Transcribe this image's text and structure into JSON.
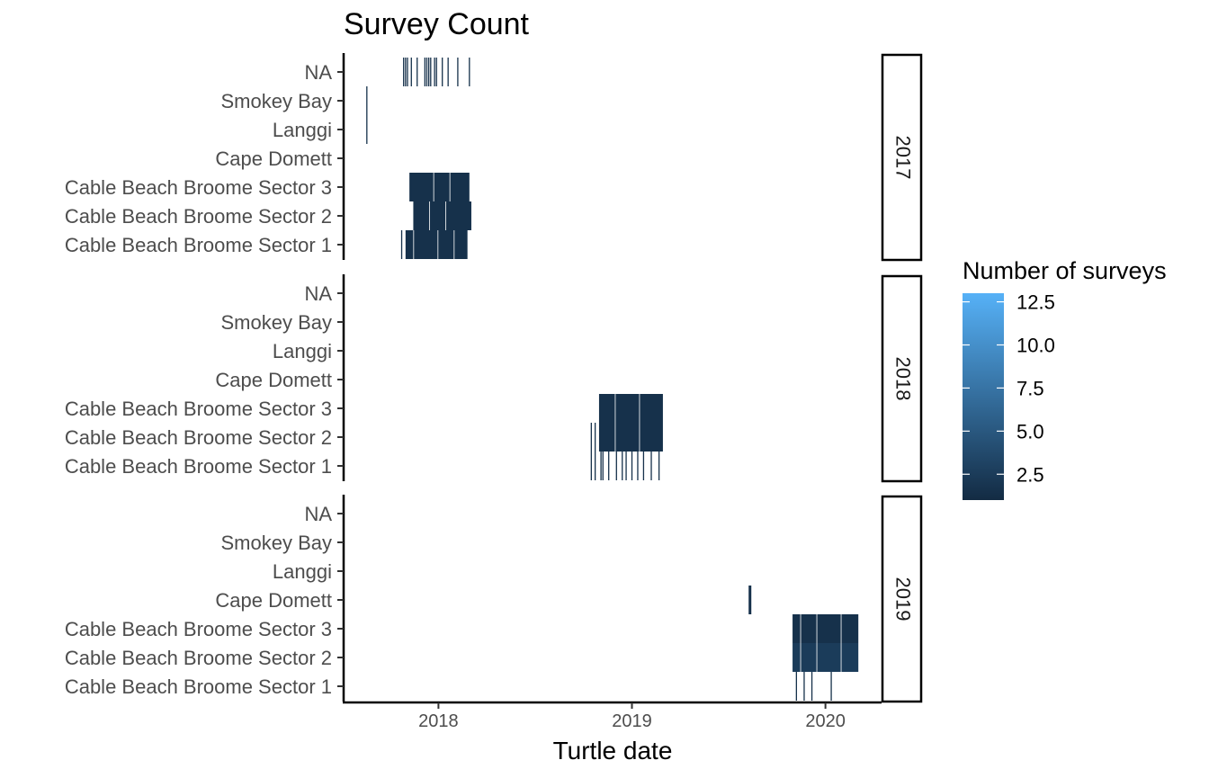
{
  "chart_data": {
    "type": "heatmap",
    "title": "Survey Count",
    "xlabel": "Turtle date",
    "ylabel": "",
    "x_ticks": [
      "2018",
      "2019",
      "2020"
    ],
    "x_tick_years": [
      2018,
      2019,
      2020
    ],
    "xlim": [
      2017.51,
      2020.29
    ],
    "y_categories": [
      "NA",
      "Smokey Bay",
      "Langgi",
      "Cape Domett",
      "Cable Beach Broome Sector 3",
      "Cable Beach Broome Sector 2",
      "Cable Beach Broome Sector 1"
    ],
    "legend": {
      "title": "Number of surveys",
      "ticks": [
        2.5,
        5.0,
        7.5,
        10.0,
        12.5
      ],
      "tick_labels": [
        "2.5",
        "5.0",
        "7.5",
        "10.0",
        "12.5"
      ],
      "range": [
        1,
        13
      ],
      "colors": {
        "low": "#132B43",
        "high": "#56B1F7"
      },
      "position": "right"
    },
    "facets": [
      {
        "label": "2017",
        "bands": [
          {
            "site": "Cable Beach Broome Sector 3",
            "from": 2017.85,
            "to": 2018.16,
            "value": 1.5
          },
          {
            "site": "Cable Beach Broome Sector 2",
            "from": 2017.87,
            "to": 2018.17,
            "value": 1.5
          },
          {
            "site": "Cable Beach Broome Sector 1",
            "from": 2017.83,
            "to": 2018.15,
            "value": 1.5
          }
        ],
        "lines": [
          {
            "site": "NA",
            "x": 2017.82,
            "value": 1.5
          },
          {
            "site": "NA",
            "x": 2017.83,
            "value": 1.5
          },
          {
            "site": "NA",
            "x": 2017.84,
            "value": 1.5
          },
          {
            "site": "NA",
            "x": 2017.86,
            "value": 1.5
          },
          {
            "site": "NA",
            "x": 2017.89,
            "value": 1.5
          },
          {
            "site": "NA",
            "x": 2017.93,
            "value": 1.5
          },
          {
            "site": "NA",
            "x": 2017.94,
            "value": 1.5
          },
          {
            "site": "NA",
            "x": 2017.95,
            "value": 1.5
          },
          {
            "site": "NA",
            "x": 2017.96,
            "value": 1.5
          },
          {
            "site": "NA",
            "x": 2017.98,
            "value": 1.5
          },
          {
            "site": "NA",
            "x": 2017.99,
            "value": 1.5
          },
          {
            "site": "NA",
            "x": 2018.02,
            "value": 1.5
          },
          {
            "site": "NA",
            "x": 2018.05,
            "value": 1.5
          },
          {
            "site": "NA",
            "x": 2018.1,
            "value": 1.5
          },
          {
            "site": "NA",
            "x": 2018.16,
            "value": 1.5
          },
          {
            "site": "Smokey Bay",
            "x": 2017.63,
            "value": 1.5
          },
          {
            "site": "Langgi",
            "x": 2017.63,
            "value": 1.5
          },
          {
            "site": "Cable Beach Broome Sector 1",
            "x": 2017.81,
            "value": 1.5
          }
        ]
      },
      {
        "label": "2018",
        "bands": [
          {
            "site": "Cable Beach Broome Sector 3",
            "from": 2018.83,
            "to": 2019.16,
            "value": 1.5
          },
          {
            "site": "Cable Beach Broome Sector 2",
            "from": 2018.83,
            "to": 2019.16,
            "value": 1.5
          }
        ],
        "lines": [
          {
            "site": "Cable Beach Broome Sector 2",
            "x": 2018.79,
            "value": 1.5
          },
          {
            "site": "Cable Beach Broome Sector 2",
            "x": 2018.81,
            "value": 1.5
          },
          {
            "site": "Cable Beach Broome Sector 1",
            "x": 2018.79,
            "value": 1.5
          },
          {
            "site": "Cable Beach Broome Sector 1",
            "x": 2018.81,
            "value": 1.5
          },
          {
            "site": "Cable Beach Broome Sector 1",
            "x": 2018.84,
            "value": 1.5
          },
          {
            "site": "Cable Beach Broome Sector 1",
            "x": 2018.85,
            "value": 1.5
          },
          {
            "site": "Cable Beach Broome Sector 1",
            "x": 2018.88,
            "value": 1.5
          },
          {
            "site": "Cable Beach Broome Sector 1",
            "x": 2018.92,
            "value": 1.5
          },
          {
            "site": "Cable Beach Broome Sector 1",
            "x": 2018.95,
            "value": 1.5
          },
          {
            "site": "Cable Beach Broome Sector 1",
            "x": 2018.97,
            "value": 1.5
          },
          {
            "site": "Cable Beach Broome Sector 1",
            "x": 2019.0,
            "value": 1.5
          },
          {
            "site": "Cable Beach Broome Sector 1",
            "x": 2019.03,
            "value": 1.5
          },
          {
            "site": "Cable Beach Broome Sector 1",
            "x": 2019.06,
            "value": 1.5
          },
          {
            "site": "Cable Beach Broome Sector 1",
            "x": 2019.1,
            "value": 1.5
          },
          {
            "site": "Cable Beach Broome Sector 1",
            "x": 2019.14,
            "value": 1.5
          }
        ]
      },
      {
        "label": "2019",
        "bands": [
          {
            "site": "Cable Beach Broome Sector 3",
            "from": 2019.83,
            "to": 2020.17,
            "value": 1.5
          },
          {
            "site": "Cable Beach Broome Sector 2",
            "from": 2019.83,
            "to": 2020.17,
            "value": 2.5
          }
        ],
        "lines": [
          {
            "site": "Cape Domett",
            "x": 2019.61,
            "value": 1.5
          },
          {
            "site": "Cable Beach Broome Sector 1",
            "x": 2019.85,
            "value": 1.5
          },
          {
            "site": "Cable Beach Broome Sector 1",
            "x": 2019.89,
            "value": 1.5
          },
          {
            "site": "Cable Beach Broome Sector 1",
            "x": 2019.93,
            "value": 1.5
          },
          {
            "site": "Cable Beach Broome Sector 1",
            "x": 2020.03,
            "value": 1.5
          }
        ]
      }
    ]
  }
}
